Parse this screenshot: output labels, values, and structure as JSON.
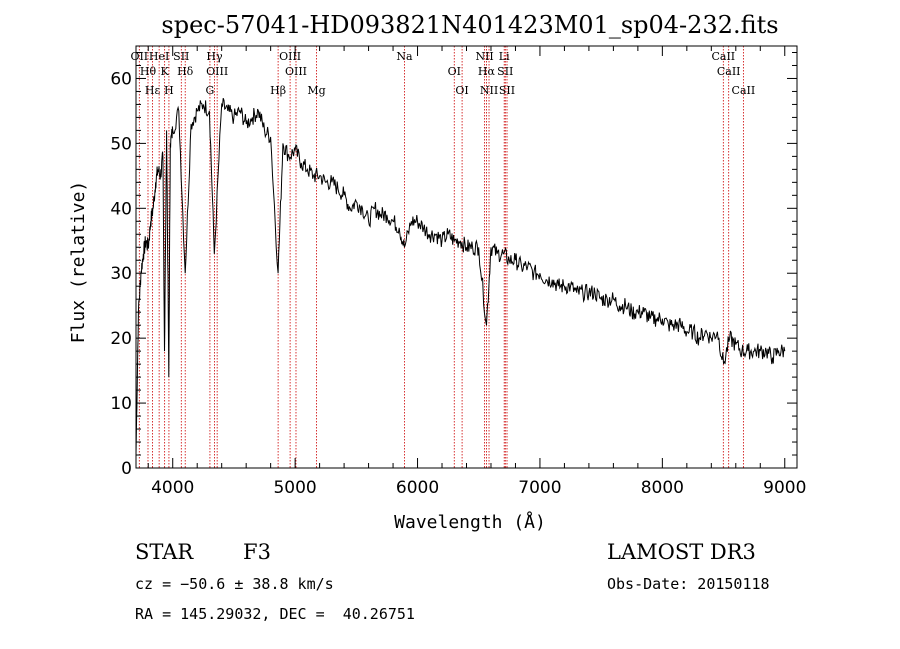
{
  "chart_data": {
    "type": "line",
    "title": "spec-57041-HD093821N401423M01_sp04-232.fits",
    "xlabel": "Wavelength (Å)",
    "ylabel": "Flux (relative)",
    "xlim": [
      3700,
      9100
    ],
    "ylim": [
      0,
      65
    ],
    "x_ticks": [
      4000,
      5000,
      6000,
      7000,
      8000,
      9000
    ],
    "x_tick_labels": [
      "4000",
      "5000",
      "6000",
      "7000",
      "8000",
      "9000"
    ],
    "y_ticks": [
      0,
      10,
      20,
      30,
      40,
      50,
      60
    ],
    "y_tick_labels": [
      "0",
      "10",
      "20",
      "30",
      "40",
      "50",
      "60"
    ],
    "grid": false,
    "series": [
      {
        "name": "spectrum",
        "x": [
          3700,
          3720,
          3740,
          3760,
          3780,
          3800,
          3820,
          3840,
          3860,
          3880,
          3900,
          3920,
          3933,
          3950,
          3968,
          3980,
          4000,
          4050,
          4102,
          4150,
          4200,
          4250,
          4300,
          4340,
          4400,
          4450,
          4500,
          4550,
          4600,
          4650,
          4700,
          4750,
          4800,
          4861,
          4900,
          4950,
          5000,
          5050,
          5100,
          5150,
          5200,
          5250,
          5300,
          5350,
          5400,
          5450,
          5500,
          5550,
          5600,
          5650,
          5700,
          5750,
          5800,
          5850,
          5893,
          5950,
          6000,
          6050,
          6100,
          6150,
          6200,
          6250,
          6300,
          6350,
          6400,
          6450,
          6500,
          6563,
          6600,
          6650,
          6700,
          6750,
          6800,
          6850,
          6900,
          6950,
          7000,
          7050,
          7100,
          7150,
          7200,
          7250,
          7300,
          7350,
          7400,
          7450,
          7500,
          7550,
          7600,
          7650,
          7700,
          7750,
          7800,
          7850,
          7900,
          7950,
          8000,
          8050,
          8100,
          8150,
          8200,
          8250,
          8300,
          8350,
          8400,
          8450,
          8500,
          8550,
          8600,
          8650,
          8700,
          8750,
          8800,
          8850,
          8900,
          8950,
          9000
        ],
        "y": [
          2,
          24,
          30,
          33,
          35,
          34,
          38,
          40,
          44,
          46,
          45,
          48,
          18,
          52,
          14,
          50,
          52,
          55,
          30,
          53,
          55,
          56,
          55,
          33,
          56,
          55,
          54,
          55,
          53,
          54,
          55,
          52,
          51,
          30,
          50,
          48,
          49,
          47,
          46,
          45,
          45,
          44,
          44,
          43,
          42,
          40,
          41,
          40,
          38,
          40,
          39,
          39,
          38,
          37,
          34,
          38,
          38,
          37,
          36,
          36,
          35,
          36,
          35,
          35,
          34,
          34,
          34,
          22,
          34,
          33,
          33,
          32,
          32,
          31,
          31,
          30,
          30,
          29,
          29,
          28,
          28,
          28,
          27,
          27,
          27,
          27,
          26,
          26,
          26,
          25,
          25,
          24,
          24,
          24,
          23,
          23,
          23,
          22,
          22,
          22,
          21,
          21,
          20,
          21,
          20,
          21,
          16,
          20,
          19,
          18,
          18,
          18,
          18,
          18,
          17,
          18,
          18
        ]
      }
    ],
    "line_markers": [
      {
        "label": "OII",
        "x": 3727
      },
      {
        "label": "Hθ",
        "x": 3798
      },
      {
        "label": "Hε",
        "x": 3835
      },
      {
        "label": "HeI",
        "x": 3889
      },
      {
        "label": "K",
        "x": 3934
      },
      {
        "label": "H",
        "x": 3969
      },
      {
        "label": "SII",
        "x": 4070
      },
      {
        "label": "Hδ",
        "x": 4102
      },
      {
        "label": "G",
        "x": 4304
      },
      {
        "label": "Hγ",
        "x": 4341
      },
      {
        "label": "OIII",
        "x": 4363
      },
      {
        "label": "Hβ",
        "x": 4861
      },
      {
        "label": "OIII",
        "x": 4959
      },
      {
        "label": "OIII",
        "x": 5007
      },
      {
        "label": "Mg",
        "x": 5175
      },
      {
        "label": "Na",
        "x": 5893
      },
      {
        "label": "OI",
        "x": 6300
      },
      {
        "label": "OI",
        "x": 6364
      },
      {
        "label": "NII",
        "x": 6548
      },
      {
        "label": "Hα",
        "x": 6563
      },
      {
        "label": "NII",
        "x": 6584
      },
      {
        "label": "Li",
        "x": 6708
      },
      {
        "label": "SII",
        "x": 6717
      },
      {
        "label": "SII",
        "x": 6731
      },
      {
        "label": "CaII",
        "x": 8498
      },
      {
        "label": "CaII",
        "x": 8542
      },
      {
        "label": "CaII",
        "x": 8662
      }
    ],
    "line_color": "#000000",
    "marker_color": "#cc0000"
  },
  "info": {
    "class_label": "STAR",
    "subclass": "F3",
    "survey": "LAMOST DR3",
    "cz": "cz = −50.6 ± 38.8 km/s",
    "obs_date": "Obs-Date: 20150118",
    "coords": "RA = 145.29032, DEC =  40.26751"
  }
}
